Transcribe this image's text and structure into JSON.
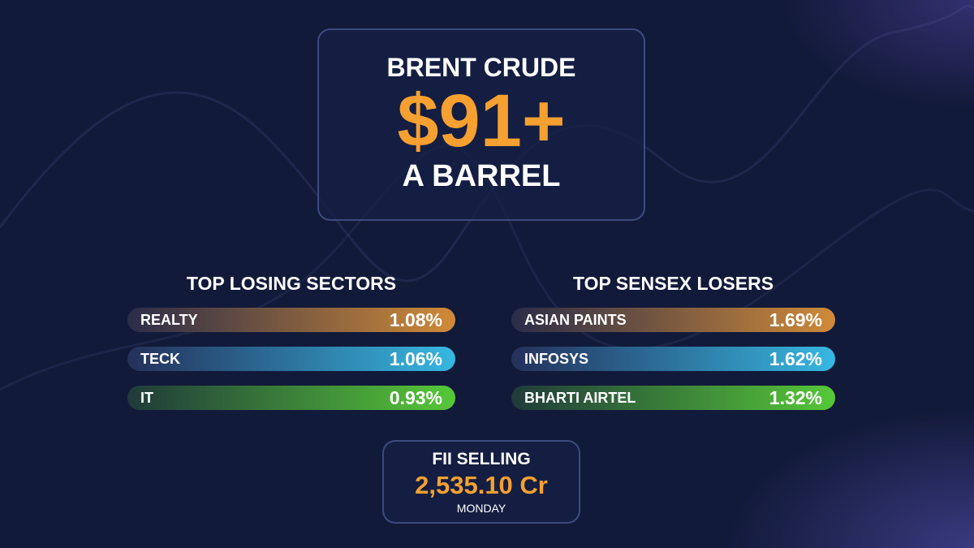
{
  "headline": {
    "title": "BRENT CRUDE",
    "value": "$91+",
    "subtitle": "A BARREL"
  },
  "panels": [
    {
      "title": "TOP LOSING SECTORS",
      "rows": [
        [
          "REALTY",
          "1.08%"
        ],
        [
          "TECK",
          "1.06%"
        ],
        [
          "IT",
          "0.93%"
        ]
      ]
    },
    {
      "title": "TOP SENSEX LOSERS",
      "rows": [
        [
          "ASIAN PAINTS",
          "1.69%"
        ],
        [
          "INFOSYS",
          "1.62%"
        ],
        [
          "BHARTI AIRTEL",
          "1.32%"
        ]
      ]
    }
  ],
  "fii": {
    "title": "FII SELLING",
    "value": "2,535.10 Cr",
    "day": "MONDAY"
  }
}
